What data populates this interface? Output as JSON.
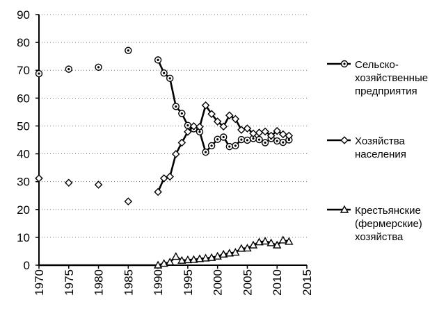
{
  "chart_data": {
    "type": "line",
    "title": "",
    "xlabel": "",
    "ylabel": "",
    "xlim": [
      1970,
      2015
    ],
    "ylim": [
      0,
      90
    ],
    "xticks": [
      1970,
      1975,
      1980,
      1985,
      1990,
      1995,
      2000,
      2005,
      2010,
      2015
    ],
    "yticks": [
      0,
      10,
      20,
      30,
      40,
      50,
      60,
      70,
      80,
      90
    ],
    "grid": "dotted-horizontal",
    "legend_position": "right",
    "series": [
      {
        "name": "Сельско-хозяйственные предприятия",
        "legend_lines": [
          "Сельско-",
          "хозяйственные",
          "предприятия"
        ],
        "marker": "circle",
        "isolated_points": [
          [
            1970,
            68.8
          ],
          [
            1975,
            70.4
          ],
          [
            1980,
            71.1
          ],
          [
            1985,
            77.1
          ]
        ],
        "points": [
          [
            1990,
            73.7
          ],
          [
            1991,
            69.0
          ],
          [
            1992,
            67.1
          ],
          [
            1993,
            57.0
          ],
          [
            1994,
            54.5
          ],
          [
            1995,
            50.2
          ],
          [
            1996,
            49.0
          ],
          [
            1997,
            47.9
          ],
          [
            1998,
            40.6
          ],
          [
            1999,
            42.9
          ],
          [
            2000,
            45.2
          ],
          [
            2001,
            46.0
          ],
          [
            2002,
            42.6
          ],
          [
            2003,
            42.9
          ],
          [
            2004,
            45.1
          ],
          [
            2005,
            44.9
          ],
          [
            2006,
            45.5
          ],
          [
            2007,
            45.1
          ],
          [
            2008,
            44.0
          ],
          [
            2009,
            45.5
          ],
          [
            2010,
            44.6
          ],
          [
            2011,
            44.1
          ],
          [
            2012,
            45.0
          ]
        ]
      },
      {
        "name": "Хозяйства населения",
        "legend_lines": [
          "Хозяйства",
          "населения"
        ],
        "marker": "diamond",
        "isolated_points": [
          [
            1970,
            31.2
          ],
          [
            1975,
            29.6
          ],
          [
            1980,
            28.9
          ],
          [
            1985,
            22.9
          ]
        ],
        "points": [
          [
            1990,
            26.3
          ],
          [
            1991,
            31.2
          ],
          [
            1992,
            31.8
          ],
          [
            1993,
            39.9
          ],
          [
            1994,
            44.0
          ],
          [
            1995,
            47.9
          ],
          [
            1996,
            49.9
          ],
          [
            1997,
            49.7
          ],
          [
            1998,
            57.4
          ],
          [
            1999,
            54.3
          ],
          [
            2000,
            51.6
          ],
          [
            2001,
            49.8
          ],
          [
            2002,
            53.8
          ],
          [
            2003,
            52.5
          ],
          [
            2004,
            48.6
          ],
          [
            2005,
            49.1
          ],
          [
            2006,
            47.3
          ],
          [
            2007,
            47.6
          ],
          [
            2008,
            48.0
          ],
          [
            2009,
            46.5
          ],
          [
            2010,
            48.2
          ],
          [
            2011,
            47.0
          ],
          [
            2012,
            46.5
          ]
        ]
      },
      {
        "name": "Крестьянские (фермерские) хозяйства",
        "legend_lines": [
          "Крестьянские",
          "(фермерские)",
          "хозяйства"
        ],
        "marker": "triangle",
        "baseline_segment": [
          [
            1970,
            0
          ],
          [
            1990,
            0
          ]
        ],
        "points": [
          [
            1990,
            0
          ],
          [
            1991,
            0.6
          ],
          [
            1992,
            1.1
          ],
          [
            1993,
            3.1
          ],
          [
            1994,
            1.7
          ],
          [
            1995,
            1.9
          ],
          [
            1996,
            2.0
          ],
          [
            1997,
            2.3
          ],
          [
            1998,
            2.5
          ],
          [
            1999,
            2.7
          ],
          [
            2000,
            3.2
          ],
          [
            2001,
            3.9
          ],
          [
            2002,
            4.3
          ],
          [
            2003,
            4.6
          ],
          [
            2004,
            6.0
          ],
          [
            2005,
            6.1
          ],
          [
            2006,
            7.2
          ],
          [
            2007,
            8.3
          ],
          [
            2008,
            8.6
          ],
          [
            2009,
            8.0
          ],
          [
            2010,
            7.2
          ],
          [
            2011,
            9.0
          ],
          [
            2012,
            8.5
          ]
        ]
      }
    ]
  }
}
